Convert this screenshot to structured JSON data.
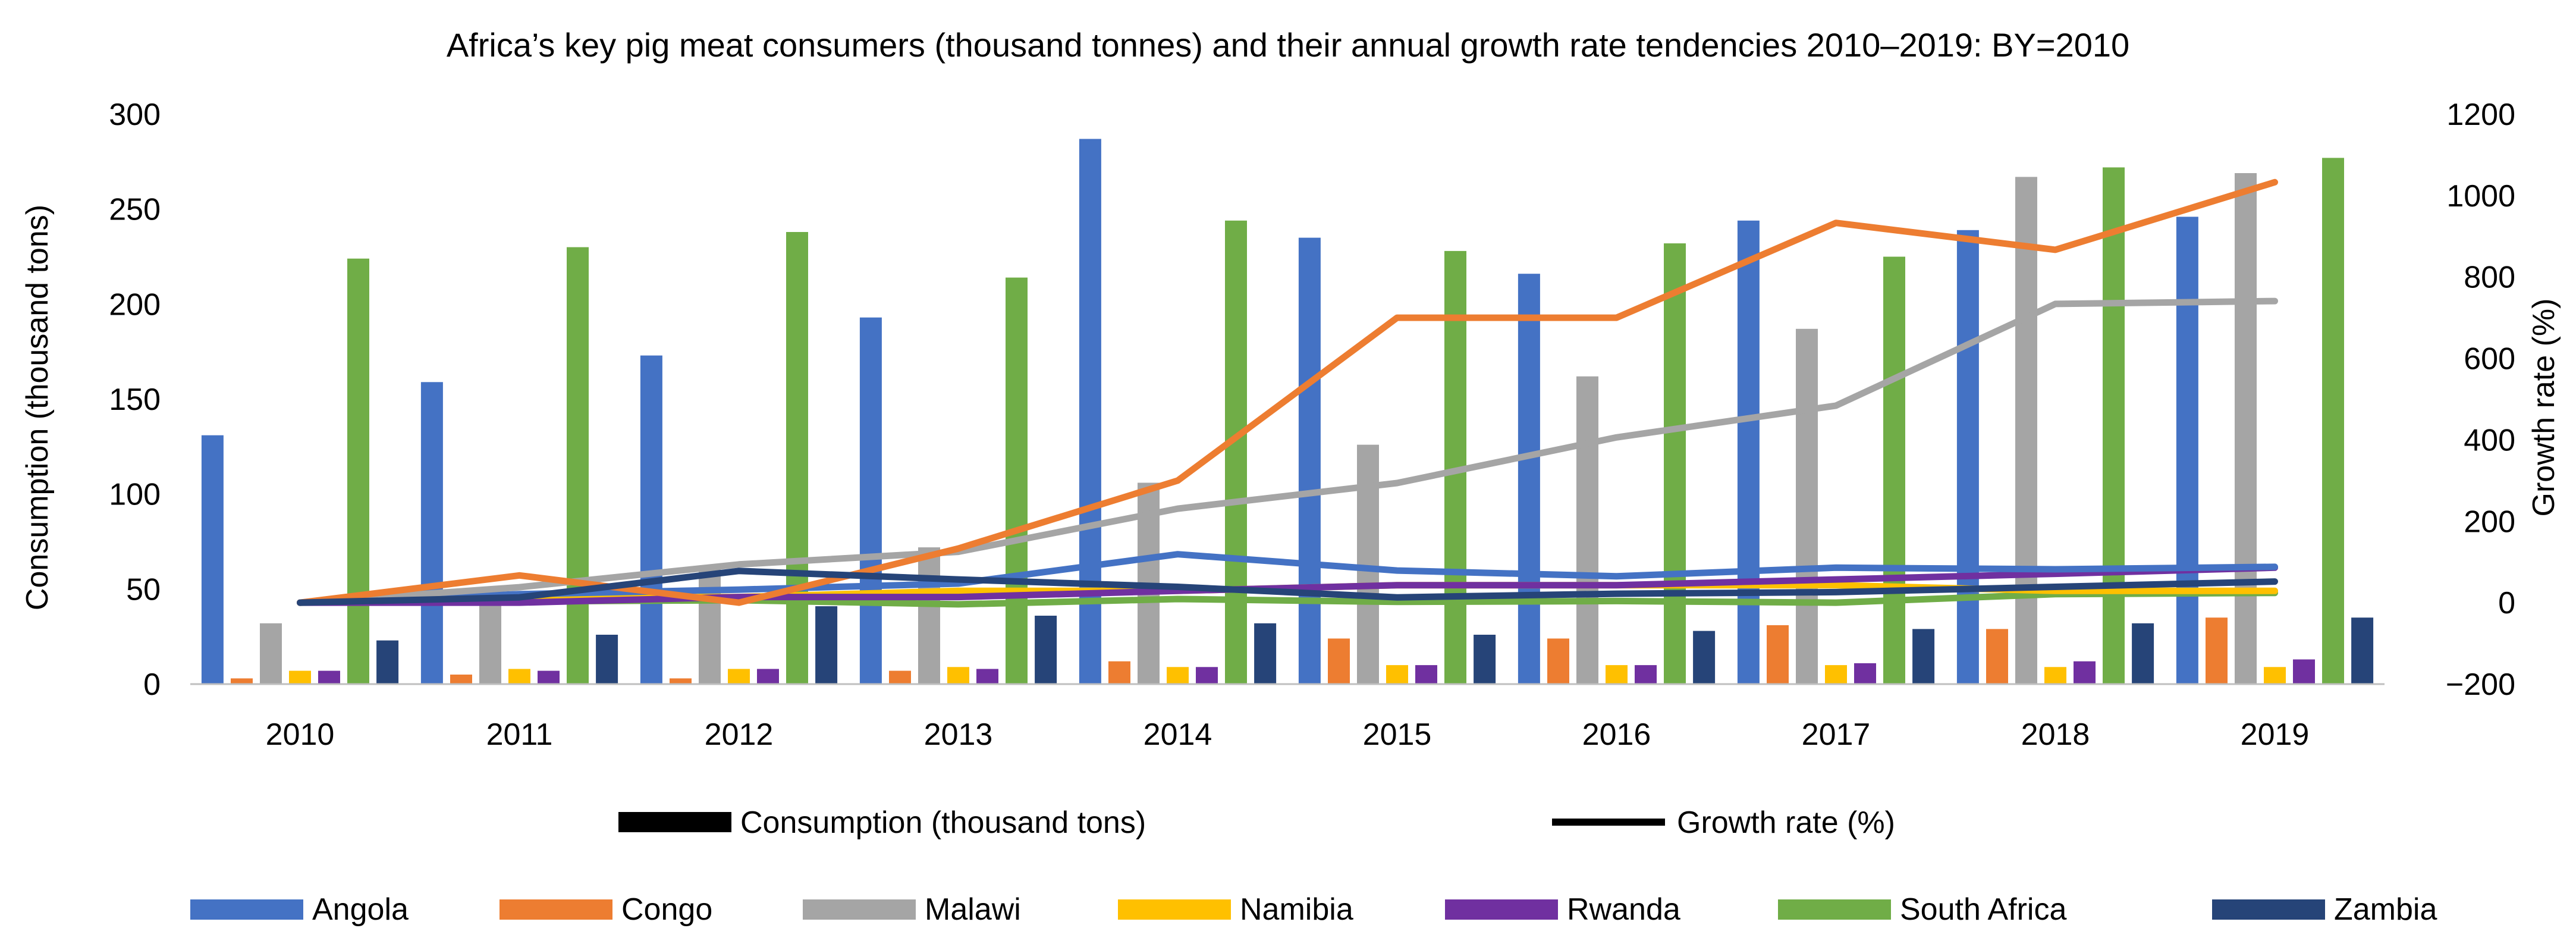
{
  "chart_data": {
    "type": "bar",
    "title": "Africa’s key pig meat consumers (thousand tonnes) and their annual growth rate tendencies 2010–2019: BY=2010",
    "categories": [
      "2010",
      "2011",
      "2012",
      "2013",
      "2014",
      "2015",
      "2016",
      "2017",
      "2018",
      "2019"
    ],
    "ylabel_left": "Consumption (thousand tons)",
    "ylabel_right": "Growth rate (%)",
    "ylim_left": [
      0,
      300
    ],
    "ylim_right": [
      -200,
      1200
    ],
    "yticks_left": [
      "0",
      "50",
      "100",
      "150",
      "200",
      "250",
      "300"
    ],
    "yticks_right": [
      "−200",
      "0",
      "200",
      "400",
      "600",
      "800",
      "1000",
      "1200"
    ],
    "legend_type": {
      "bars_label": "Consumption (thousand tons)",
      "lines_label": "Growth rate (%)"
    },
    "series": [
      {
        "name": "Angola",
        "color": "#4472C4",
        "values": [
          131,
          159,
          173,
          193,
          287,
          235,
          216,
          244,
          239,
          246
        ],
        "growth": [
          0,
          21,
          32,
          47,
          119,
          79,
          65,
          86,
          82,
          88
        ]
      },
      {
        "name": "Congo",
        "color": "#ED7D31",
        "values": [
          3,
          5,
          3,
          7,
          12,
          24,
          24,
          31,
          29,
          35
        ],
        "growth": [
          0,
          67,
          0,
          133,
          300,
          700,
          700,
          933,
          867,
          1033
        ]
      },
      {
        "name": "Malawi",
        "color": "#A5A5A5",
        "values": [
          32,
          44,
          62,
          72,
          106,
          126,
          162,
          187,
          267,
          269
        ],
        "growth": [
          0,
          38,
          94,
          125,
          231,
          294,
          406,
          484,
          734,
          741
        ]
      },
      {
        "name": "Namibia",
        "color": "#FFC000",
        "values": [
          7,
          8,
          8,
          9,
          9,
          10,
          10,
          10,
          9,
          9
        ],
        "growth": [
          0,
          14,
          14,
          29,
          29,
          43,
          43,
          43,
          29,
          29
        ]
      },
      {
        "name": "Rwanda",
        "color": "#7030A0",
        "values": [
          7,
          7,
          8,
          8,
          9,
          10,
          10,
          11,
          12,
          13
        ],
        "growth": [
          0,
          0,
          14,
          14,
          29,
          43,
          43,
          57,
          71,
          86
        ]
      },
      {
        "name": "South Africa",
        "color": "#70AD47",
        "values": [
          224,
          230,
          238,
          214,
          244,
          228,
          232,
          225,
          272,
          277
        ],
        "growth": [
          0,
          3,
          6,
          -4,
          9,
          2,
          4,
          0,
          21,
          24
        ]
      },
      {
        "name": "Zambia",
        "color": "#264478",
        "values": [
          23,
          26,
          41,
          36,
          32,
          26,
          28,
          29,
          32,
          35
        ],
        "growth": [
          0,
          13,
          78,
          57,
          39,
          13,
          22,
          26,
          39,
          52
        ]
      }
    ]
  }
}
